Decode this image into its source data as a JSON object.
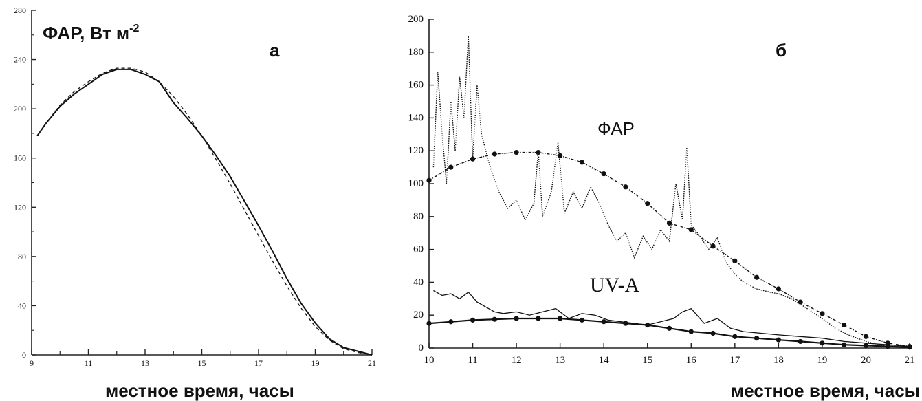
{
  "chart_data": [
    {
      "type": "line",
      "panel_label": "а",
      "ylabel": "ФАР, Вт м",
      "ylabel_sup": "-2",
      "xlabel": "местное время, часы",
      "xlim": [
        9,
        21
      ],
      "ylim": [
        0,
        280
      ],
      "x_ticks": [
        "9",
        "11",
        "13",
        "15",
        "17",
        "19",
        "21"
      ],
      "y_ticks": [
        "0",
        "40",
        "80",
        "120",
        "160",
        "200",
        "240",
        "280"
      ],
      "series": [
        {
          "style": "solid",
          "x": [
            9.2,
            9.5,
            10,
            10.5,
            11,
            11.5,
            12,
            12.5,
            13,
            13.5,
            14,
            14.5,
            15,
            15.5,
            16,
            16.5,
            17,
            17.5,
            18,
            18.5,
            19,
            19.5,
            20,
            20.5,
            21
          ],
          "y": [
            178,
            188,
            202,
            212,
            220,
            228,
            232,
            232,
            228,
            222,
            205,
            192,
            178,
            162,
            145,
            125,
            105,
            84,
            62,
            42,
            26,
            13,
            6,
            3,
            0
          ]
        },
        {
          "style": "dashed",
          "x": [
            9.2,
            9.5,
            10,
            10.5,
            11,
            11.5,
            12,
            12.5,
            13,
            13.5,
            14,
            14.5,
            15,
            15.5,
            16,
            16.5,
            17,
            17.5,
            18,
            18.5,
            19,
            19.5,
            20,
            20.5,
            21
          ],
          "y": [
            178,
            188,
            203,
            214,
            222,
            229,
            233,
            233,
            230,
            222,
            210,
            195,
            178,
            159,
            139,
            118,
            97,
            76,
            56,
            38,
            23,
            12,
            5,
            2,
            0
          ]
        }
      ]
    },
    {
      "type": "line",
      "panel_label": "б",
      "xlabel": "местное время, часы",
      "xlim": [
        10,
        21
      ],
      "ylim": [
        0,
        200
      ],
      "x_ticks": [
        "10",
        "11",
        "12",
        "13",
        "14",
        "15",
        "16",
        "17",
        "18",
        "19",
        "20",
        "21"
      ],
      "y_ticks": [
        "0",
        "20",
        "40",
        "60",
        "80",
        "100",
        "120",
        "140",
        "160",
        "180",
        "200"
      ],
      "annotations": [
        "ФАР",
        "UV-A"
      ],
      "series": [
        {
          "style": "dotted",
          "x": [
            10.1,
            10.2,
            10.3,
            10.4,
            10.5,
            10.6,
            10.7,
            10.8,
            10.9,
            11.0,
            11.1,
            11.2,
            11.4,
            11.6,
            11.8,
            12.0,
            12.2,
            12.4,
            12.5,
            12.6,
            12.8,
            12.95,
            13.1,
            13.3,
            13.5,
            13.7,
            13.9,
            14.1,
            14.3,
            14.5,
            14.7,
            14.9,
            15.1,
            15.3,
            15.5,
            15.65,
            15.8,
            15.9,
            16.0,
            16.2,
            16.4,
            16.6,
            16.8,
            17.0,
            17.2,
            17.5,
            17.8,
            18.0,
            18.3,
            18.6,
            19.0,
            19.3,
            19.6,
            20.0,
            20.3,
            20.6,
            21.0
          ],
          "y": [
            110,
            168,
            130,
            100,
            150,
            120,
            165,
            140,
            190,
            115,
            160,
            130,
            110,
            95,
            85,
            90,
            78,
            88,
            120,
            80,
            95,
            125,
            82,
            95,
            85,
            98,
            88,
            75,
            65,
            70,
            55,
            68,
            60,
            72,
            65,
            100,
            78,
            122,
            75,
            68,
            60,
            67,
            52,
            45,
            40,
            36,
            34,
            33,
            30,
            25,
            18,
            12,
            8,
            4,
            2,
            1,
            0
          ]
        },
        {
          "style": "dash-dot-markers",
          "x": [
            10.0,
            10.5,
            11.0,
            11.5,
            12.0,
            12.5,
            13.0,
            13.5,
            14.0,
            14.5,
            15.0,
            15.5,
            16.0,
            16.5,
            17.0,
            17.5,
            18.0,
            18.5,
            19.0,
            19.5,
            20.0,
            20.5,
            21.0
          ],
          "y": [
            102,
            110,
            115,
            118,
            119,
            119,
            117,
            113,
            106,
            98,
            88,
            76,
            72,
            62,
            53,
            43,
            36,
            28,
            21,
            14,
            7,
            3,
            1
          ]
        },
        {
          "style": "solid-thin",
          "x": [
            10.1,
            10.3,
            10.5,
            10.7,
            10.9,
            11.1,
            11.3,
            11.5,
            11.7,
            12.0,
            12.3,
            12.6,
            12.9,
            13.2,
            13.5,
            13.8,
            14.1,
            14.4,
            14.7,
            15.0,
            15.3,
            15.6,
            15.8,
            16.0,
            16.3,
            16.6,
            16.9,
            17.2,
            17.6,
            18.0,
            18.5,
            19.0,
            19.5,
            20.0,
            20.5,
            21.0
          ],
          "y": [
            35,
            32,
            33,
            30,
            34,
            28,
            25,
            22,
            21,
            22,
            20,
            22,
            24,
            18,
            21,
            20,
            17,
            16,
            15,
            14,
            16,
            18,
            22,
            24,
            15,
            18,
            12,
            10,
            9,
            8,
            7,
            6,
            4,
            3,
            2,
            1
          ]
        },
        {
          "style": "solid-markers",
          "x": [
            10.0,
            10.5,
            11.0,
            11.5,
            12.0,
            12.5,
            13.0,
            13.5,
            14.0,
            14.5,
            15.0,
            15.5,
            16.0,
            16.5,
            17.0,
            17.5,
            18.0,
            18.5,
            19.0,
            19.5,
            20.0,
            20.5,
            21.0
          ],
          "y": [
            15,
            16,
            17,
            17.5,
            18,
            18,
            18,
            17,
            16,
            15,
            14,
            12,
            10,
            9,
            7,
            6,
            5,
            4,
            3,
            2,
            1.5,
            1,
            0.5
          ]
        }
      ]
    }
  ]
}
